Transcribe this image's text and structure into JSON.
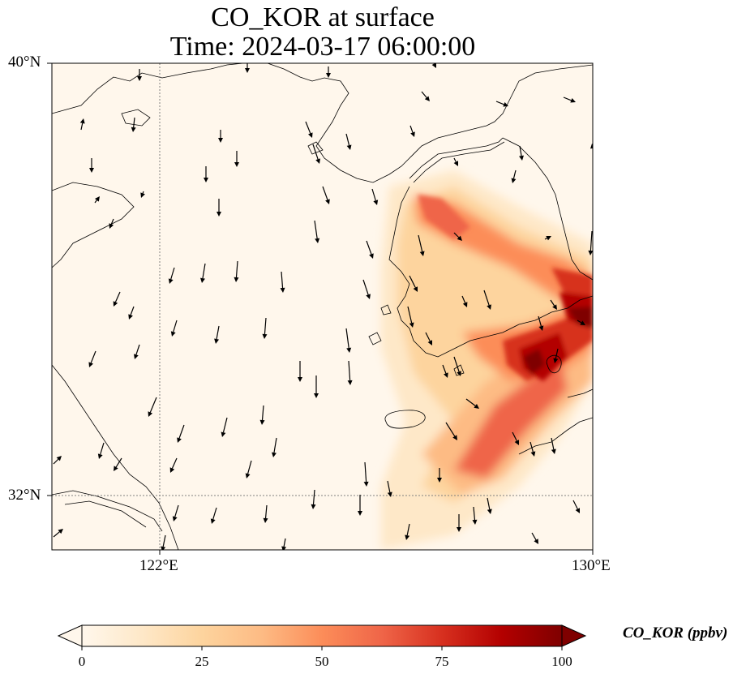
{
  "title": {
    "line1": "CO_KOR at surface",
    "line2": "Time: 2024-03-17 06:00:00"
  },
  "map": {
    "lat_labels": [
      "40°N",
      "32°N"
    ],
    "lon_labels": [
      "122°E",
      "130°E"
    ],
    "extent": {
      "lon_min": 120,
      "lon_max": 130,
      "lat_min": 31,
      "lat_max": 40
    },
    "gridlines": {
      "lon": [
        122
      ],
      "lat": [
        32
      ],
      "style": "dotted gray"
    },
    "variable": "CO_KOR",
    "wind_vectors": "shown as black arrows"
  },
  "colorbar": {
    "label": "CO_KOR (ppbv)",
    "ticks": [
      "0",
      "25",
      "50",
      "75",
      "100"
    ],
    "min": 0,
    "max": 100,
    "extend": "both",
    "colormap": "OrRd",
    "colors": [
      "#fff7ec",
      "#fee8c8",
      "#fdd49e",
      "#fdbb84",
      "#fc8d59",
      "#ef6548",
      "#d7301f",
      "#b30000",
      "#7f0000"
    ]
  }
}
